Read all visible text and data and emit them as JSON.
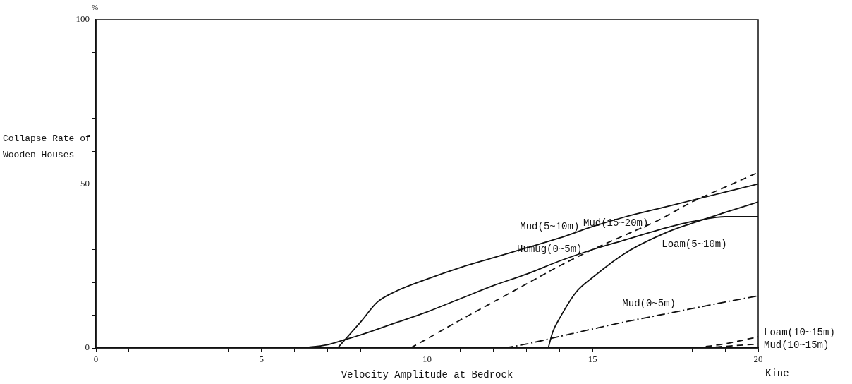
{
  "chart_data": {
    "type": "line",
    "xlabel": "Velocity Amplitude at Bedrock",
    "ylabel": "Collapse Rate of Wooden Houses",
    "xlim": [
      0,
      20
    ],
    "ylim": [
      0,
      100
    ],
    "xticks": [
      0,
      {
        "value": 1,
        "label": null
      },
      {
        "value": 2,
        "label": null
      },
      {
        "value": 3,
        "label": null
      },
      {
        "value": 4,
        "label": null
      },
      5,
      {
        "value": 6,
        "label": null
      },
      {
        "value": 7,
        "label": null
      },
      {
        "value": 8,
        "label": null
      },
      {
        "value": 9,
        "label": null
      },
      10,
      {
        "value": 11,
        "label": null
      },
      {
        "value": 12,
        "label": null
      },
      {
        "value": 13,
        "label": null
      },
      {
        "value": 14,
        "label": null
      },
      15,
      {
        "value": 16,
        "label": null
      },
      {
        "value": 17,
        "label": null
      },
      {
        "value": 18,
        "label": null
      },
      {
        "value": 19,
        "label": null
      },
      20
    ],
    "yticks": [
      0,
      {
        "value": 10,
        "label": null
      },
      {
        "value": 20,
        "label": null
      },
      {
        "value": 30,
        "label": null
      },
      {
        "value": 40,
        "label": null
      },
      50,
      {
        "value": 60,
        "label": null
      },
      {
        "value": 70,
        "label": null
      },
      {
        "value": 80,
        "label": null
      },
      {
        "value": 90,
        "label": null
      },
      100
    ],
    "grid": false,
    "legend": false,
    "marker": "none",
    "series": [
      {
        "name": "Mud(5~10m)",
        "color": "#111111",
        "line_style": "solid",
        "x": [
          7.3,
          8,
          8.5,
          9,
          10,
          11,
          12,
          13,
          14,
          15,
          16,
          17,
          18,
          19,
          20
        ],
        "values": [
          0,
          8,
          14,
          17,
          21,
          24.5,
          27.5,
          30.5,
          33.5,
          37,
          40,
          42.5,
          45,
          47.5,
          50
        ]
      },
      {
        "name": "Humug(0~5m)",
        "color": "#111111",
        "line_style": "solid",
        "x": [
          6.2,
          7,
          7.5,
          8,
          9,
          10,
          11,
          12,
          13,
          14,
          15,
          16,
          17,
          18,
          19,
          20
        ],
        "values": [
          0,
          1,
          2.5,
          4,
          7.5,
          11,
          15,
          19,
          22.5,
          26.5,
          30,
          33,
          36,
          38.5,
          40,
          40
        ]
      },
      {
        "name": "Mud(15~20m)",
        "color": "#111111",
        "line_style": "dashed",
        "x": [
          9.5,
          10,
          11,
          12,
          13,
          14,
          15,
          16,
          17,
          18,
          19,
          20
        ],
        "values": [
          0,
          2.8,
          8.5,
          14,
          19.5,
          25,
          30,
          34.5,
          39,
          44.5,
          49,
          53.5
        ]
      },
      {
        "name": "Loam(5~10m)",
        "color": "#111111",
        "line_style": "solid",
        "x": [
          13.66,
          13.8,
          14,
          14.5,
          15,
          16,
          17.3,
          18,
          19,
          20
        ],
        "values": [
          0,
          5,
          9,
          17,
          21.5,
          29,
          35.5,
          38,
          41.3,
          44.5
        ]
      },
      {
        "name": "Mud(0~5m)",
        "color": "#111111",
        "line_style": "dashdot",
        "x": [
          12.35,
          13,
          14,
          15,
          16,
          17,
          18,
          19,
          20
        ],
        "values": [
          0,
          1.2,
          3.5,
          5.8,
          8,
          10,
          12,
          14,
          15.9
        ]
      },
      {
        "name": "Loam(10~15m)",
        "color": "#111111",
        "line_style": "dashed",
        "x": [
          18.1,
          19,
          20
        ],
        "values": [
          0,
          1.3,
          3.4
        ]
      },
      {
        "name": "Mud(10~15m)",
        "color": "#111111",
        "line_style": "dashed",
        "x": [
          18.4,
          19,
          20
        ],
        "values": [
          0,
          0.5,
          1.2
        ]
      }
    ],
    "annotations": [
      "%",
      "Kine"
    ]
  }
}
